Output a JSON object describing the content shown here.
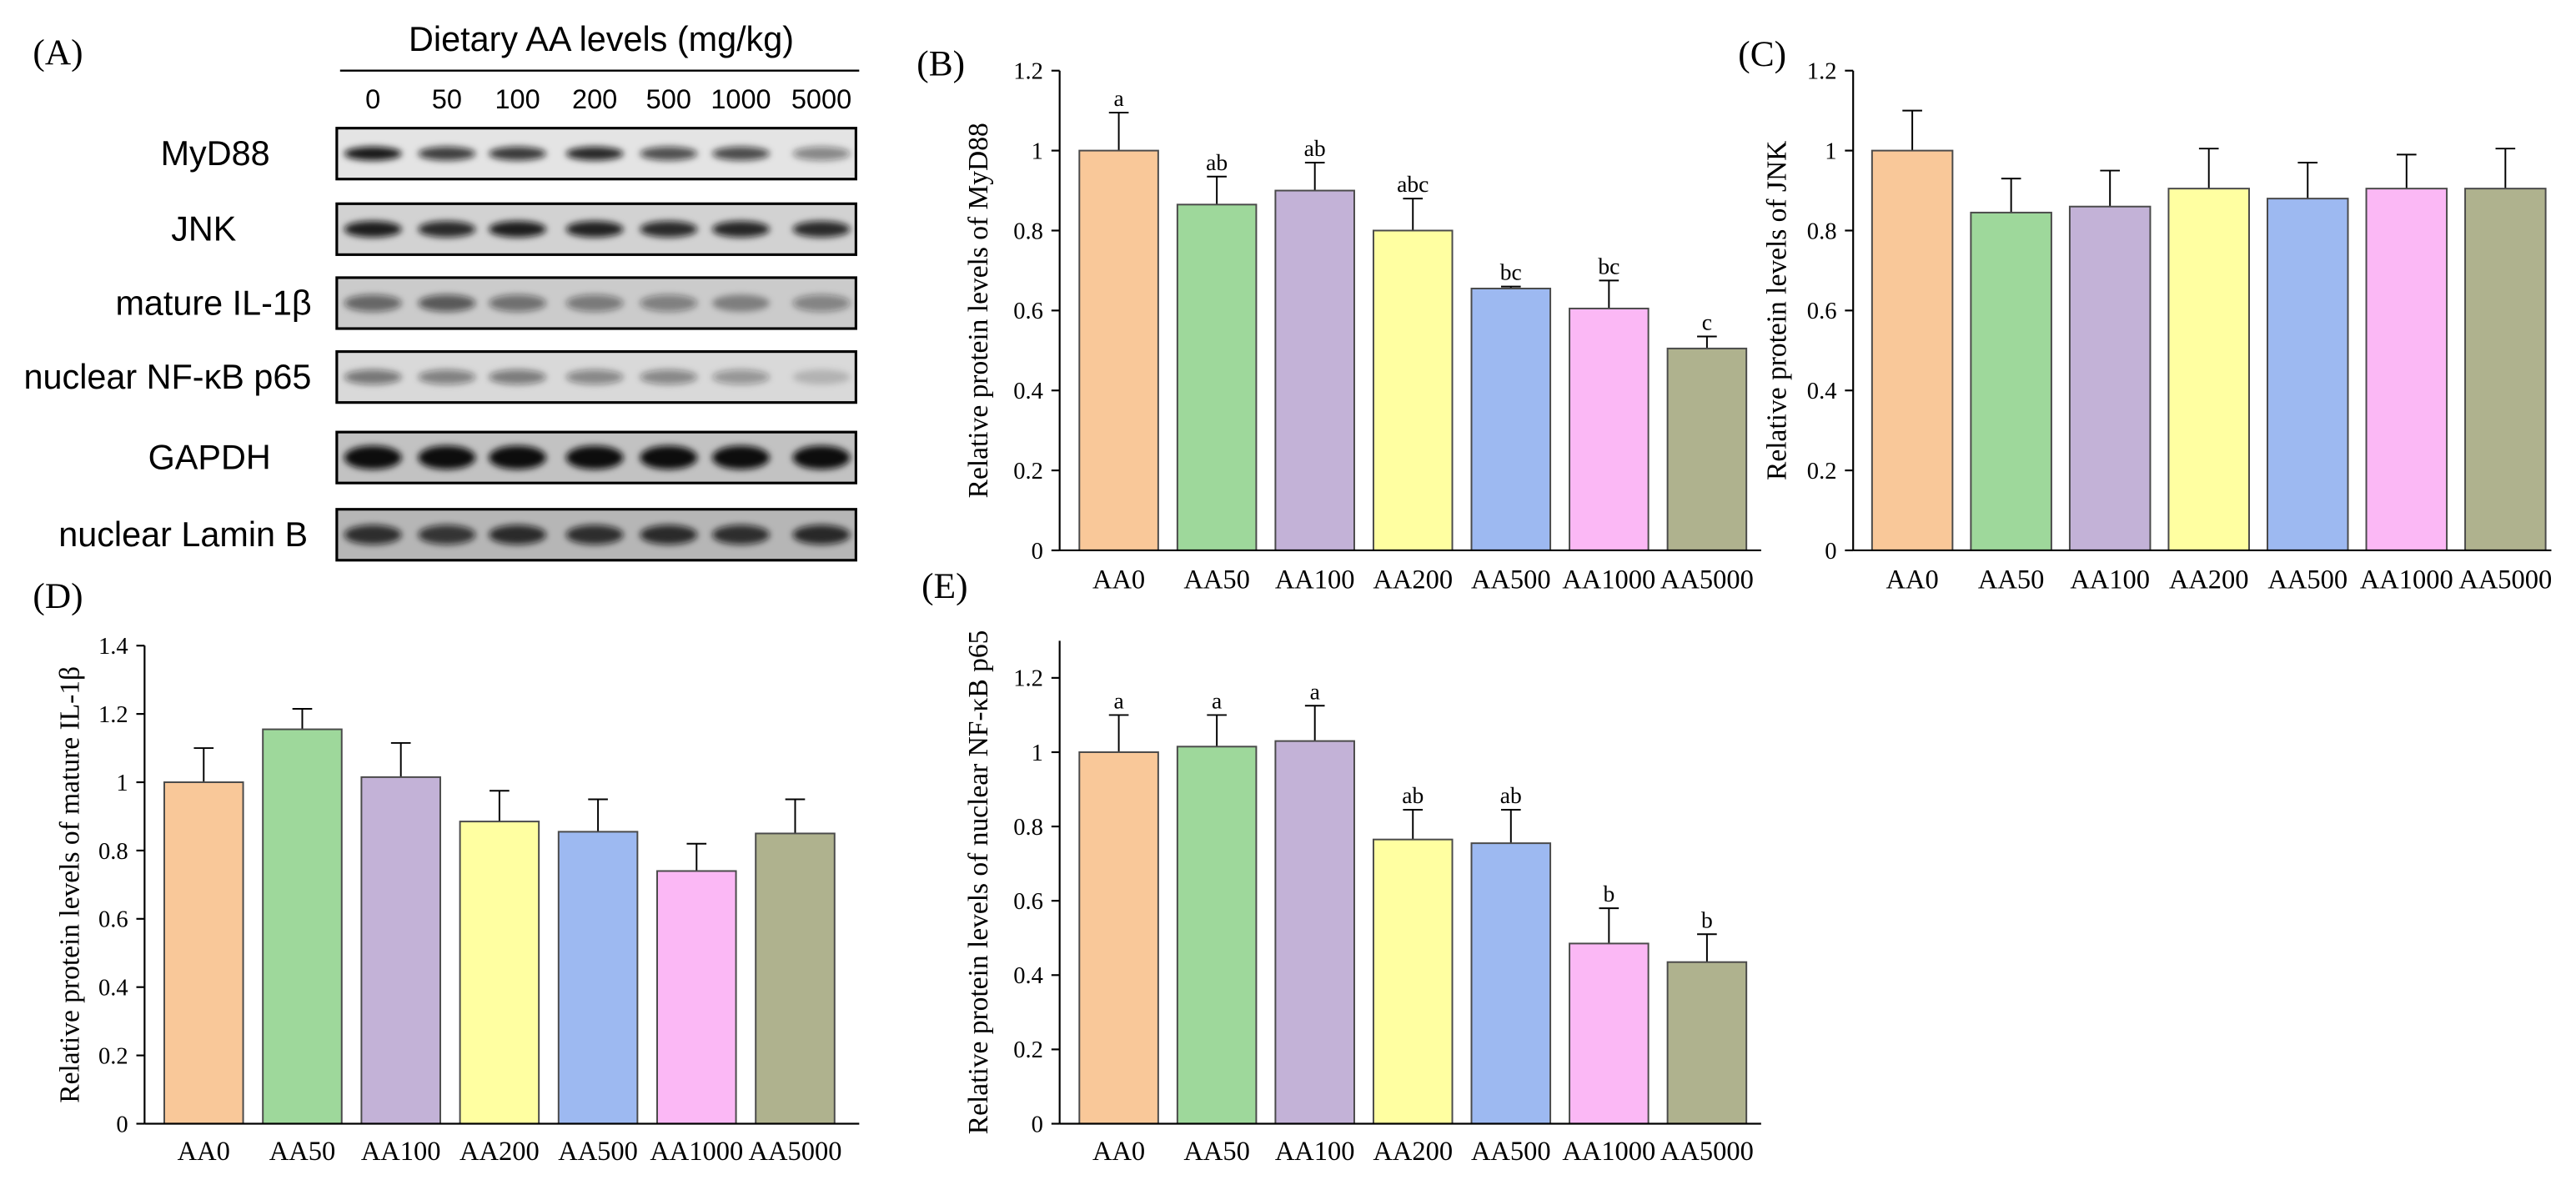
{
  "figure": {
    "panel_a": {
      "label": "(A)",
      "title": "Dietary AA levels (mg/kg)",
      "lanes": [
        "0",
        "50",
        "100",
        "200",
        "500",
        "1000",
        "5000"
      ],
      "rows": [
        {
          "name": "MyD88",
          "background": "#e4e4e4",
          "band_intensity": [
            0.95,
            0.78,
            0.8,
            0.88,
            0.7,
            0.72,
            0.45
          ]
        },
        {
          "name": "JNK",
          "background": "#d2d2d2",
          "band_intensity": [
            0.92,
            0.86,
            0.92,
            0.9,
            0.86,
            0.88,
            0.86
          ]
        },
        {
          "name": "mature IL-1β",
          "background": "#cbcbcb",
          "band_intensity": [
            0.55,
            0.62,
            0.5,
            0.45,
            0.42,
            0.38,
            0.4
          ]
        },
        {
          "name": "nuclear NF-κB p65",
          "background": "#d9d9d9",
          "band_intensity": [
            0.5,
            0.45,
            0.48,
            0.42,
            0.42,
            0.35,
            0.18
          ]
        },
        {
          "name": "GAPDH",
          "background": "#c2c2c2",
          "band_intensity": [
            1,
            1,
            1,
            1,
            1,
            1,
            1
          ]
        },
        {
          "name": "nuclear Lamin B",
          "background": "#b6b6b6",
          "band_intensity": [
            0.82,
            0.78,
            0.84,
            0.82,
            0.84,
            0.82,
            0.85
          ]
        }
      ]
    }
  },
  "palette": {
    "AA0": "#F9C899",
    "AA50": "#9ED89B",
    "AA100": "#C3B2D7",
    "AA200": "#FFFFA1",
    "AA500": "#9DB9F1",
    "AA1000": "#FBB8F5",
    "AA5000": "#AFB28E"
  },
  "chart_data": [
    {
      "panel": "(B)",
      "type": "bar",
      "categories": [
        "AA0",
        "AA50",
        "AA100",
        "AA200",
        "AA500",
        "AA1000",
        "AA5000"
      ],
      "values": [
        1.0,
        0.865,
        0.9,
        0.8,
        0.655,
        0.605,
        0.505
      ],
      "errors": [
        0.095,
        0.07,
        0.07,
        0.08,
        0.005,
        0.07,
        0.03
      ],
      "significance": [
        "a",
        "ab",
        "ab",
        "abc",
        "bc",
        "bc",
        "c"
      ],
      "ylabel": "Relative protein levels of MyD88",
      "ylim": [
        0,
        1.2
      ],
      "yticks": [
        "0",
        "0.2",
        "0.4",
        "0.6",
        "0.8",
        "1",
        "1.2"
      ]
    },
    {
      "panel": "(C)",
      "type": "bar",
      "categories": [
        "AA0",
        "AA50",
        "AA100",
        "AA200",
        "AA500",
        "AA1000",
        "AA5000"
      ],
      "values": [
        1.0,
        0.845,
        0.86,
        0.905,
        0.88,
        0.905,
        0.905
      ],
      "errors": [
        0.1,
        0.085,
        0.09,
        0.1,
        0.09,
        0.085,
        0.1
      ],
      "ylabel": "Relative protein levels of JNK",
      "ylim": [
        0,
        1.2
      ],
      "yticks": [
        "0",
        "0.2",
        "0.4",
        "0.6",
        "0.8",
        "1",
        "1.2"
      ]
    },
    {
      "panel": "(D)",
      "type": "bar",
      "categories": [
        "AA0",
        "AA50",
        "AA100",
        "AA200",
        "AA500",
        "AA1000",
        "AA5000"
      ],
      "values": [
        1.0,
        1.155,
        1.015,
        0.885,
        0.855,
        0.74,
        0.85
      ],
      "errors": [
        0.1,
        0.06,
        0.1,
        0.09,
        0.095,
        0.08,
        0.1
      ],
      "ylabel": "Relative protein levels of mature IL-1β",
      "ylim": [
        0,
        1.4
      ],
      "yticks": [
        "0",
        "0.2",
        "0.4",
        "0.6",
        "0.8",
        "1",
        "1.2",
        "1.4"
      ]
    },
    {
      "panel": "(E)",
      "type": "bar",
      "categories": [
        "AA0",
        "AA50",
        "AA100",
        "AA200",
        "AA500",
        "AA1000",
        "AA5000"
      ],
      "values": [
        1.0,
        1.015,
        1.03,
        0.765,
        0.755,
        0.485,
        0.435
      ],
      "errors": [
        0.1,
        0.085,
        0.095,
        0.08,
        0.09,
        0.095,
        0.075
      ],
      "significance": [
        "a",
        "a",
        "a",
        "ab",
        "ab",
        "b",
        "b"
      ],
      "ylabel": "Relative protein levels of nuclear NF-κB p65",
      "ylim": [
        0,
        1.3
      ],
      "yticks": [
        "0",
        "0.2",
        "0.4",
        "0.6",
        "0.8",
        "1",
        "1.2"
      ]
    }
  ]
}
